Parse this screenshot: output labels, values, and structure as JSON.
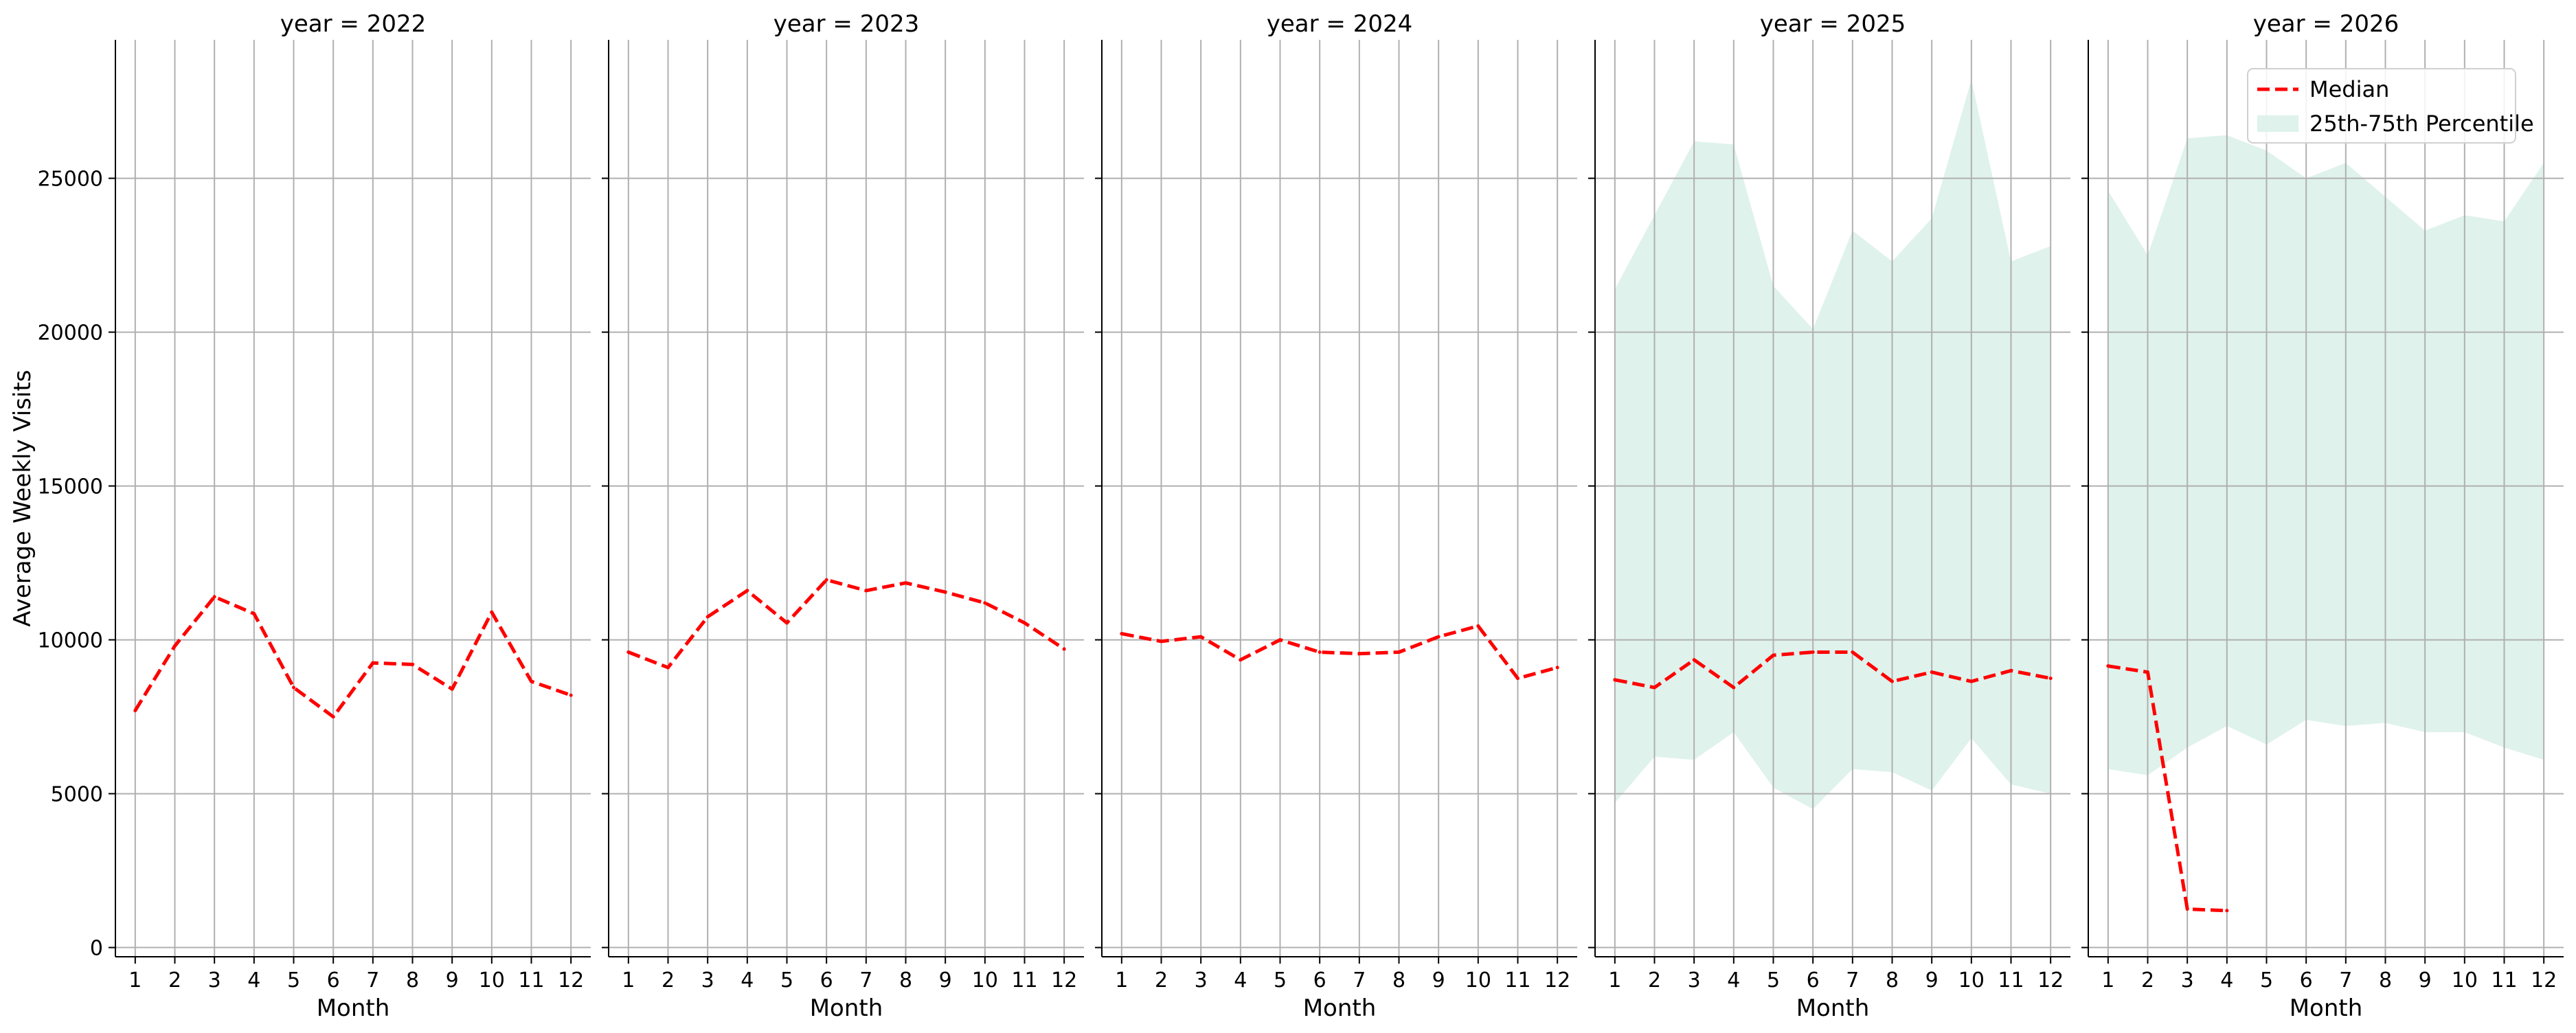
{
  "chart_data": {
    "type": "line",
    "ylabel": "Average Weekly Visits",
    "xlabel": "Month",
    "x": [
      1,
      2,
      3,
      4,
      5,
      6,
      7,
      8,
      9,
      10,
      11,
      12
    ],
    "x_ticks": [
      "1",
      "2",
      "3",
      "4",
      "5",
      "6",
      "7",
      "8",
      "9",
      "10",
      "11",
      "12"
    ],
    "y_ticks": [
      0,
      5000,
      10000,
      15000,
      20000,
      25000
    ],
    "ylim": [
      -300,
      29500
    ],
    "xlim": [
      0.5,
      12.5
    ],
    "grid": true,
    "legend": {
      "position": "top-right",
      "entries": [
        "Median",
        "25th-75th Percentile"
      ]
    },
    "colors": {
      "median": "#ff0000",
      "band": "#dff2ec"
    },
    "panels": [
      {
        "title": "year = 2022",
        "median": [
          7700,
          9800,
          11400,
          10850,
          8450,
          7500,
          9250,
          9200,
          8400,
          10900,
          8650,
          8200
        ],
        "q25": null,
        "q75": null
      },
      {
        "title": "year = 2023",
        "median": [
          9600,
          9100,
          10750,
          11600,
          10550,
          11950,
          11600,
          11850,
          11550,
          11200,
          10550,
          9700
        ],
        "q25": null,
        "q75": null
      },
      {
        "title": "year = 2024",
        "median": [
          10200,
          9950,
          10100,
          9350,
          10000,
          9600,
          9550,
          9600,
          10100,
          10450,
          8750,
          9100
        ],
        "q25": null,
        "q75": null
      },
      {
        "title": "year = 2025",
        "median": [
          8700,
          8450,
          9350,
          8450,
          9500,
          9600,
          9600,
          8650,
          8950,
          8650,
          9000,
          8750
        ],
        "q25": [
          4700,
          6200,
          6100,
          7000,
          5200,
          4500,
          5800,
          5700,
          5100,
          6800,
          5300,
          5000
        ],
        "q75": [
          21400,
          23800,
          26200,
          26100,
          21500,
          20100,
          23300,
          22300,
          23700,
          28200,
          22300,
          22800
        ]
      },
      {
        "title": "year = 2026",
        "median": [
          9150,
          8950,
          1250,
          1200,
          null,
          null,
          null,
          null,
          null,
          null,
          null,
          null
        ],
        "q25": [
          5800,
          5600,
          6500,
          7200,
          6600,
          7400,
          7200,
          7300,
          7000,
          7000,
          6500,
          6100
        ],
        "q75": [
          24600,
          22500,
          26300,
          26400,
          25900,
          25000,
          25500,
          24400,
          23300,
          23800,
          23600,
          25500
        ]
      }
    ]
  }
}
